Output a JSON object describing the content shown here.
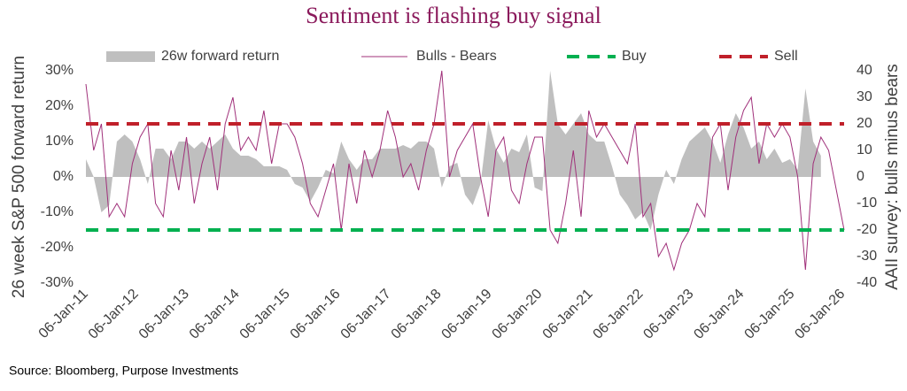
{
  "chart_data": {
    "type": "area-line",
    "title": "Sentiment is flashing buy signal",
    "source": "Source: Bloomberg, Purpose Investments",
    "y_label": "26 week S&P 500 forward return",
    "y2_label": "AAII survey: bulls minus bears",
    "x": [
      "2011-01-06",
      "2011-03-03",
      "2011-04-28",
      "2011-06-23",
      "2011-08-18",
      "2011-10-13",
      "2011-12-08",
      "2012-02-02",
      "2012-03-29",
      "2012-05-24",
      "2012-07-19",
      "2012-09-13",
      "2012-11-08",
      "2013-01-03",
      "2013-02-28",
      "2013-04-25",
      "2013-06-20",
      "2013-08-15",
      "2013-10-10",
      "2013-12-05",
      "2014-01-30",
      "2014-03-27",
      "2014-05-22",
      "2014-07-17",
      "2014-09-11",
      "2014-11-06",
      "2015-01-01",
      "2015-02-26",
      "2015-04-23",
      "2015-06-18",
      "2015-08-13",
      "2015-10-08",
      "2015-12-03",
      "2016-01-28",
      "2016-03-24",
      "2016-05-19",
      "2016-07-14",
      "2016-09-08",
      "2016-11-03",
      "2016-12-29",
      "2017-02-23",
      "2017-04-20",
      "2017-06-15",
      "2017-08-10",
      "2017-10-05",
      "2017-11-30",
      "2018-01-25",
      "2018-03-22",
      "2018-05-17",
      "2018-07-12",
      "2018-09-06",
      "2018-11-01",
      "2018-12-27",
      "2019-02-21",
      "2019-04-18",
      "2019-06-13",
      "2019-08-08",
      "2019-10-03",
      "2019-11-28",
      "2020-01-23",
      "2020-03-19",
      "2020-05-14",
      "2020-07-09",
      "2020-09-03",
      "2020-10-29",
      "2020-12-24",
      "2021-02-18",
      "2021-04-15",
      "2021-06-10",
      "2021-08-05",
      "2021-09-30",
      "2021-11-25",
      "2022-01-20",
      "2022-03-17",
      "2022-05-12",
      "2022-07-07",
      "2022-09-01",
      "2022-10-27",
      "2022-12-22",
      "2023-02-16",
      "2023-04-13",
      "2023-06-08",
      "2023-08-03",
      "2023-09-28",
      "2023-11-23",
      "2024-01-18",
      "2024-03-14",
      "2024-05-09",
      "2024-07-04",
      "2024-08-29",
      "2024-10-24",
      "2024-12-19",
      "2025-02-13",
      "2025-04-10",
      "2025-06-05",
      "2025-07-31",
      "2025-09-25",
      "2025-11-20",
      "2026-01-15"
    ],
    "series": [
      {
        "name": "26w forward return",
        "kind": "area",
        "axis": "y",
        "color": "#bfbfbf",
        "values": [
          5,
          0,
          -10,
          -8,
          10,
          12,
          10,
          5,
          -2,
          8,
          8,
          5,
          10,
          10,
          8,
          10,
          8,
          10,
          12,
          8,
          6,
          6,
          5,
          3,
          3,
          3,
          2,
          -2,
          -3,
          -7,
          -3,
          2,
          1,
          10,
          5,
          2,
          5,
          5,
          8,
          8,
          8,
          9,
          8,
          10,
          10,
          8,
          -3,
          3,
          4,
          -5,
          -8,
          -2,
          16,
          8,
          4,
          8,
          7,
          12,
          -3,
          -4,
          30,
          15,
          12,
          15,
          18,
          12,
          10,
          10,
          3,
          -5,
          -8,
          -12,
          -10,
          -15,
          -5,
          2,
          -2,
          5,
          10,
          12,
          14,
          10,
          4,
          12,
          18,
          14,
          8,
          10,
          5,
          8,
          4,
          5,
          2,
          25,
          10,
          6,
          null,
          null,
          null
        ]
      },
      {
        "name": "Bulls - Bears",
        "kind": "line",
        "axis": "y2",
        "color": "#a0307a",
        "values": [
          35,
          10,
          20,
          -15,
          -10,
          -15,
          5,
          15,
          20,
          -10,
          -15,
          10,
          -5,
          15,
          -10,
          5,
          15,
          -5,
          20,
          30,
          10,
          15,
          10,
          25,
          5,
          20,
          20,
          15,
          5,
          -10,
          -15,
          -5,
          5,
          -20,
          5,
          -10,
          10,
          0,
          10,
          25,
          15,
          0,
          5,
          -5,
          10,
          20,
          40,
          0,
          10,
          15,
          20,
          0,
          -15,
          10,
          15,
          -5,
          -10,
          5,
          15,
          15,
          -20,
          -25,
          -10,
          10,
          -15,
          25,
          15,
          20,
          15,
          10,
          5,
          20,
          -15,
          -10,
          -30,
          -25,
          -35,
          -25,
          -20,
          -10,
          -15,
          15,
          20,
          -5,
          15,
          25,
          30,
          5,
          20,
          15,
          20,
          15,
          0,
          -35,
          5,
          15,
          10,
          -5,
          -20
        ]
      }
    ],
    "reference_lines": [
      {
        "name": "Buy",
        "axis": "y2",
        "value": -20,
        "color": "#00b050"
      },
      {
        "name": "Sell",
        "axis": "y2",
        "value": 20,
        "color": "#c0202a"
      }
    ],
    "xlim": [
      "2011-01-06",
      "2026-01-15"
    ],
    "xticks": [
      {
        "value": "2011-01-06",
        "label": "06-Jan-11"
      },
      {
        "value": "2012-01-06",
        "label": "06-Jan-12"
      },
      {
        "value": "2013-01-06",
        "label": "06-Jan-13"
      },
      {
        "value": "2014-01-06",
        "label": "06-Jan-14"
      },
      {
        "value": "2015-01-06",
        "label": "06-Jan-15"
      },
      {
        "value": "2016-01-06",
        "label": "06-Jan-16"
      },
      {
        "value": "2017-01-06",
        "label": "06-Jan-17"
      },
      {
        "value": "2018-01-06",
        "label": "06-Jan-18"
      },
      {
        "value": "2019-01-06",
        "label": "06-Jan-19"
      },
      {
        "value": "2020-01-06",
        "label": "06-Jan-20"
      },
      {
        "value": "2021-01-06",
        "label": "06-Jan-21"
      },
      {
        "value": "2022-01-06",
        "label": "06-Jan-22"
      },
      {
        "value": "2023-01-06",
        "label": "06-Jan-23"
      },
      {
        "value": "2024-01-06",
        "label": "06-Jan-24"
      },
      {
        "value": "2025-01-06",
        "label": "06-Jan-25"
      },
      {
        "value": "2026-01-06",
        "label": "06-Jan-26"
      }
    ],
    "ylim": [
      -30,
      30
    ],
    "yticks": [
      {
        "value": -30,
        "label": "-30%"
      },
      {
        "value": -20,
        "label": "-20%"
      },
      {
        "value": -10,
        "label": "-10%"
      },
      {
        "value": 0,
        "label": "0%"
      },
      {
        "value": 10,
        "label": "10%"
      },
      {
        "value": 20,
        "label": "20%"
      },
      {
        "value": 30,
        "label": "30%"
      }
    ],
    "y2lim": [
      -40,
      40
    ],
    "y2ticks": [
      -40,
      -30,
      -20,
      -10,
      0,
      10,
      20,
      30,
      40
    ],
    "legend": "top"
  }
}
